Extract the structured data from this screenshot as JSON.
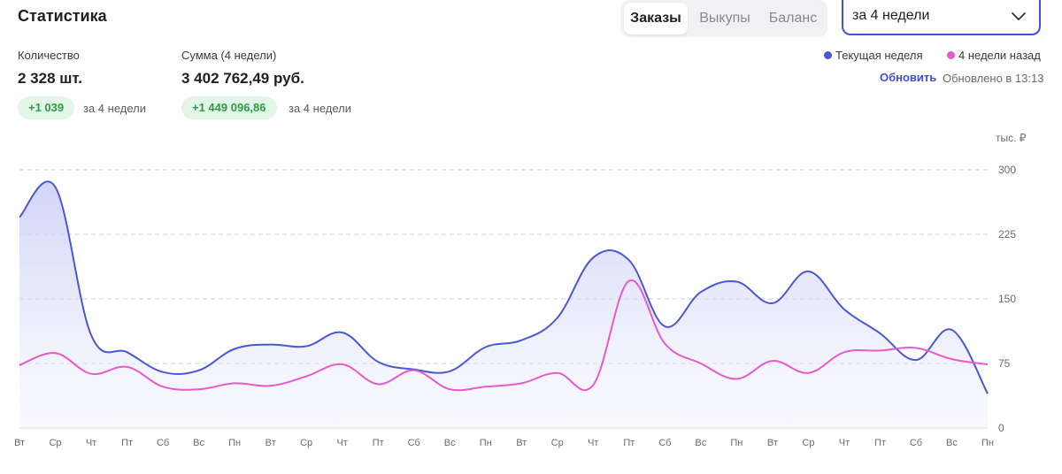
{
  "header": {
    "title": "Статистика"
  },
  "tabs": [
    {
      "label": "Заказы",
      "active": true
    },
    {
      "label": "Выкупы",
      "active": false
    },
    {
      "label": "Баланс",
      "active": false
    }
  ],
  "period_select": {
    "value": "за 4 недели"
  },
  "stats": {
    "count": {
      "label": "Количество",
      "value": "2 328 шт.",
      "delta": "+1 039",
      "delta_note": "за 4 недели"
    },
    "sum": {
      "label": "Сумма (4 недели)",
      "value": "3 402 762,49 руб.",
      "delta": "+1 449 096,86",
      "delta_note": "за 4 недели"
    }
  },
  "legend": {
    "current": "Текущая неделя",
    "past": "4 недели назад"
  },
  "refresh": {
    "label": "Обновить",
    "updated": "Обновлено в 13:13"
  },
  "colors": {
    "current": "#4a58d6",
    "past": "#e65bcb",
    "accent": "#3f51d9",
    "positive": "#2f9b4a"
  },
  "chart_data": {
    "type": "area",
    "unit_label": "тыс. ₽",
    "y_ticks": [
      "300",
      "225",
      "150",
      "75",
      "0"
    ],
    "ylim": [
      0,
      300
    ],
    "grid": true,
    "categories": [
      "Вт",
      "Ср",
      "Чт",
      "Пт",
      "Сб",
      "Вс",
      "Пн",
      "Вт",
      "Ср",
      "Чт",
      "Пт",
      "Сб",
      "Вс",
      "Пн",
      "Вт",
      "Ср",
      "Чт",
      "Пт",
      "Сб",
      "Вс",
      "Пн",
      "Вт",
      "Ср",
      "Чт",
      "Пт",
      "Сб",
      "Вс",
      "Пн"
    ],
    "series": [
      {
        "name": "Текущая неделя",
        "values": [
          245,
          280,
          108,
          88,
          65,
          67,
          92,
          97,
          95,
          111,
          77,
          68,
          66,
          94,
          102,
          128,
          198,
          195,
          118,
          158,
          170,
          145,
          182,
          138,
          110,
          79,
          114,
          40
        ]
      },
      {
        "name": "4 недели назад",
        "values": [
          73,
          87,
          63,
          71,
          48,
          45,
          52,
          49,
          60,
          74,
          51,
          67,
          45,
          48,
          52,
          64,
          50,
          171,
          98,
          75,
          57,
          78,
          64,
          88,
          90,
          93,
          80,
          74
        ]
      }
    ]
  }
}
